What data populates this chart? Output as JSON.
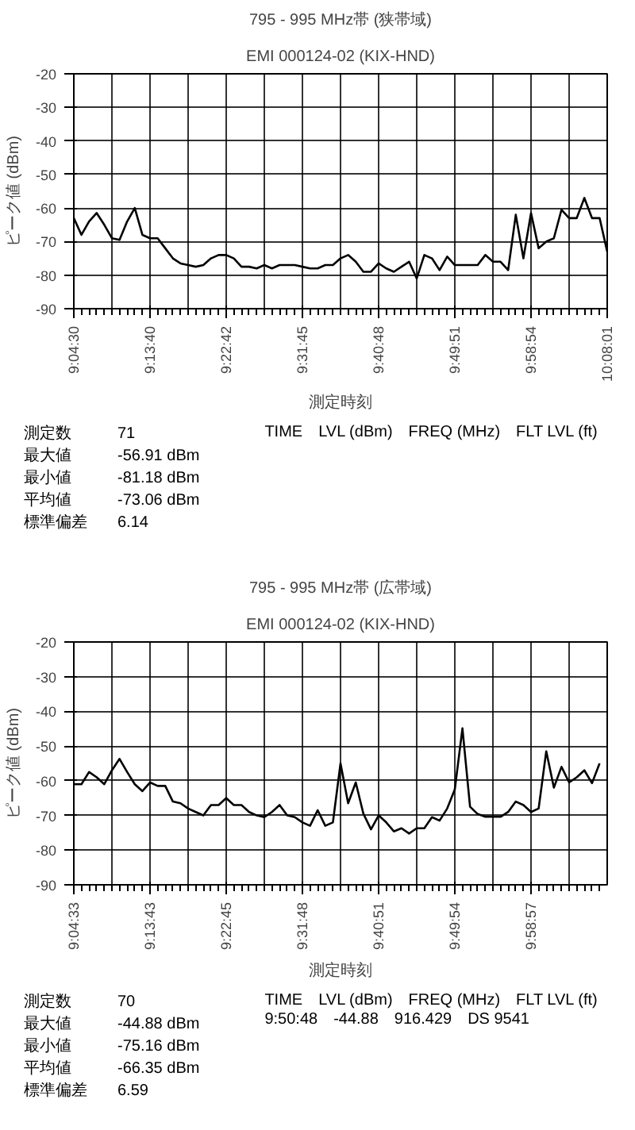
{
  "chart_data": [
    {
      "type": "line",
      "title": "795 - 995 MHz帯 (狭帯域)",
      "subtitle": "EMI 000124-02 (KIX-HND)",
      "xlabel": "測定時刻",
      "ylabel": "ピーク値 (dBm)",
      "categories": [
        "9:04:30",
        null,
        null,
        null,
        null,
        null,
        null,
        null,
        null,
        null,
        "9:13:40",
        null,
        null,
        null,
        null,
        null,
        null,
        null,
        null,
        null,
        "9:22:42",
        null,
        null,
        null,
        null,
        null,
        null,
        null,
        null,
        null,
        "9:31:45",
        null,
        null,
        null,
        null,
        null,
        null,
        null,
        null,
        null,
        "9:40:48",
        null,
        null,
        null,
        null,
        null,
        null,
        null,
        null,
        null,
        "9:49:51",
        null,
        null,
        null,
        null,
        null,
        null,
        null,
        null,
        null,
        "9:58:54",
        null,
        null,
        null,
        null,
        null,
        null,
        null,
        null,
        null,
        "10:08:01"
      ],
      "series": [
        {
          "color": "#000000",
          "values": [
            -63,
            -68,
            -64,
            -61.5,
            -65,
            -69,
            -69.5,
            -64,
            -60,
            -68,
            -69,
            -69,
            -72,
            -75,
            -76.5,
            -77,
            -77.5,
            -77,
            -75,
            -74,
            -74,
            -75,
            -77.5,
            -77.5,
            -78,
            -77,
            -78,
            -77,
            -77,
            -77,
            -77.5,
            -78,
            -78,
            -77,
            -77,
            -75,
            -74,
            -76,
            -79,
            -79,
            -76.5,
            -78,
            -79,
            -77.5,
            -76,
            -81,
            -74,
            -75,
            -78.5,
            -74.5,
            -77,
            -77,
            -77,
            -77,
            -74,
            -76,
            -76,
            -78.5,
            -62,
            -75,
            -61.5,
            -72,
            -70,
            -69,
            -60.5,
            -63,
            -63,
            -57,
            -63,
            -63,
            -73
          ]
        }
      ],
      "ylim": [
        -90,
        -20
      ],
      "yticks": [
        -90,
        -80,
        -70,
        -60,
        -50,
        -40,
        -30,
        -20
      ],
      "grid": true,
      "annotations": [
        "測定数 71",
        "最大値 -56.91 dBm",
        "最小値 -81.18 dBm",
        "平均値 -73.06 dBm",
        "標準偏差 6.14",
        "TIME　LVL (dBm)　FREQ (MHz)　FLT LVL (ft)"
      ]
    },
    {
      "type": "line",
      "title": "795 - 995 MHz帯 (広帯域)",
      "subtitle": "EMI 000124-02 (KIX-HND)",
      "xlabel": "測定時刻",
      "ylabel": "ピーク値 (dBm)",
      "categories": [
        "9:04:33",
        null,
        null,
        null,
        null,
        null,
        null,
        null,
        null,
        null,
        "9:13:43",
        null,
        null,
        null,
        null,
        null,
        null,
        null,
        null,
        null,
        "9:22:45",
        null,
        null,
        null,
        null,
        null,
        null,
        null,
        null,
        null,
        "9:31:48",
        null,
        null,
        null,
        null,
        null,
        null,
        null,
        null,
        null,
        "9:40:51",
        null,
        null,
        null,
        null,
        null,
        null,
        null,
        null,
        null,
        "9:49:54",
        null,
        null,
        null,
        null,
        null,
        null,
        null,
        null,
        null,
        "9:58:57",
        null,
        null,
        null,
        null,
        null,
        null,
        null,
        null,
        null
      ],
      "series": [
        {
          "color": "#000000",
          "values": [
            -61,
            -61,
            -57.5,
            -59,
            -61,
            -57,
            -53.7,
            -57.5,
            -61,
            -63,
            -60.5,
            -61.5,
            -61.5,
            -66,
            -66.5,
            -68,
            -69,
            -70,
            -67,
            -67,
            -65,
            -67,
            -67,
            -69,
            -70,
            -70.5,
            -69,
            -67,
            -70,
            -70.5,
            -72,
            -73,
            -68.5,
            -73,
            -72,
            -55,
            -66.5,
            -60.5,
            -69.5,
            -74,
            -70,
            -72,
            -74.6,
            -73.7,
            -75.2,
            -73.7,
            -73.7,
            -70.5,
            -71.5,
            -68,
            -62.5,
            -44.9,
            -67.5,
            -69.6,
            -70.4,
            -70.4,
            -70.4,
            -69,
            -66,
            -67,
            -69,
            -68,
            -51.5,
            -62,
            -56,
            -60.5,
            -59,
            -57,
            -60.7,
            -55
          ]
        }
      ],
      "ylim": [
        -90,
        -20
      ],
      "yticks": [
        -90,
        -80,
        -70,
        -60,
        -50,
        -40,
        -30,
        -20
      ],
      "grid": true,
      "annotations": [
        "測定数 70",
        "最大値 -44.88 dBm",
        "最小値 -75.16 dBm",
        "平均値 -66.35 dBm",
        "標準偏差 6.59",
        "TIME　LVL (dBm)　FREQ (MHz)　FLT LVL (ft)",
        "9:50:48　-44.88　916.429　DS 9541"
      ]
    }
  ]
}
